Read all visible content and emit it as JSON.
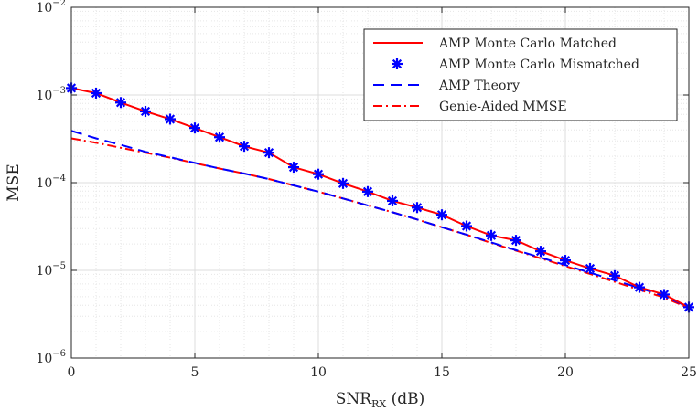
{
  "chart_data": {
    "type": "line",
    "title": "",
    "xlabel": "SNR",
    "xlabel_sub": "RX",
    "xlabel_unit": " (dB)",
    "ylabel": "MSE",
    "xlim": [
      0,
      25
    ],
    "ylim": [
      1e-06,
      0.01
    ],
    "yscale": "log",
    "grid": true,
    "minor_grid": true,
    "legend_position": "top-right",
    "x_ticks": [
      0,
      5,
      10,
      15,
      20,
      25
    ],
    "x_tick_labels": [
      "0",
      "5",
      "10",
      "15",
      "20",
      "25"
    ],
    "y_ticks": [
      -6,
      -5,
      -4,
      -3,
      -2
    ],
    "y_tick_base": "10",
    "y_tick_exponents": [
      "−6",
      "−5",
      "−4",
      "−3",
      "−2"
    ],
    "x": [
      0,
      1,
      2,
      3,
      4,
      5,
      6,
      7,
      8,
      9,
      10,
      11,
      12,
      13,
      14,
      15,
      16,
      17,
      18,
      19,
      20,
      21,
      22,
      23,
      24,
      25
    ],
    "series": [
      {
        "name": "AMP Monte Carlo Matched",
        "color": "#ff0000",
        "style": "solid",
        "values": [
          0.0012,
          0.00105,
          0.00082,
          0.00065,
          0.00053,
          0.00042,
          0.00033,
          0.00026,
          0.00022,
          0.00015,
          0.000125,
          9.8e-05,
          7.9e-05,
          6.2e-05,
          5.2e-05,
          4.3e-05,
          3.2e-05,
          2.5e-05,
          2.2e-05,
          1.65e-05,
          1.3e-05,
          1.05e-05,
          8.7e-06,
          6.4e-06,
          5.3e-06,
          3.8e-06
        ]
      },
      {
        "name": "AMP Monte Carlo Mismatched",
        "color": "#0000ff",
        "style": "marker",
        "values": [
          0.0012,
          0.00105,
          0.00082,
          0.00065,
          0.00053,
          0.00042,
          0.00033,
          0.00026,
          0.00022,
          0.00015,
          0.000125,
          9.8e-05,
          7.9e-05,
          6.2e-05,
          5.2e-05,
          4.3e-05,
          3.2e-05,
          2.5e-05,
          2.2e-05,
          1.65e-05,
          1.3e-05,
          1.05e-05,
          8.7e-06,
          6.4e-06,
          5.3e-06,
          3.8e-06
        ]
      },
      {
        "name": "AMP Theory",
        "color": "#0000ff",
        "style": "dashed",
        "values": [
          0.00039,
          0.00032,
          0.00027,
          0.000225,
          0.000195,
          0.000168,
          0.000145,
          0.000127,
          0.00011,
          9.3e-05,
          7.9e-05,
          6.6e-05,
          5.5e-05,
          4.6e-05,
          3.8e-05,
          3.1e-05,
          2.55e-05,
          2.08e-05,
          1.7e-05,
          1.4e-05,
          1.15e-05,
          9.4e-06,
          7.7e-06,
          6.3e-06,
          5.1e-06,
          3.8e-06
        ]
      },
      {
        "name": "Genie-Aided MMSE",
        "color": "#ff0000",
        "style": "dashdot",
        "values": [
          0.00032,
          0.000285,
          0.00025,
          0.00022,
          0.000193,
          0.000167,
          0.000145,
          0.000127,
          0.00011,
          9.3e-05,
          7.9e-05,
          6.6e-05,
          5.5e-05,
          4.6e-05,
          3.8e-05,
          3.1e-05,
          2.55e-05,
          2.05e-05,
          1.68e-05,
          1.37e-05,
          1.12e-05,
          9.1e-06,
          7.4e-06,
          6e-06,
          4.9e-06,
          3.7e-06
        ]
      }
    ]
  }
}
